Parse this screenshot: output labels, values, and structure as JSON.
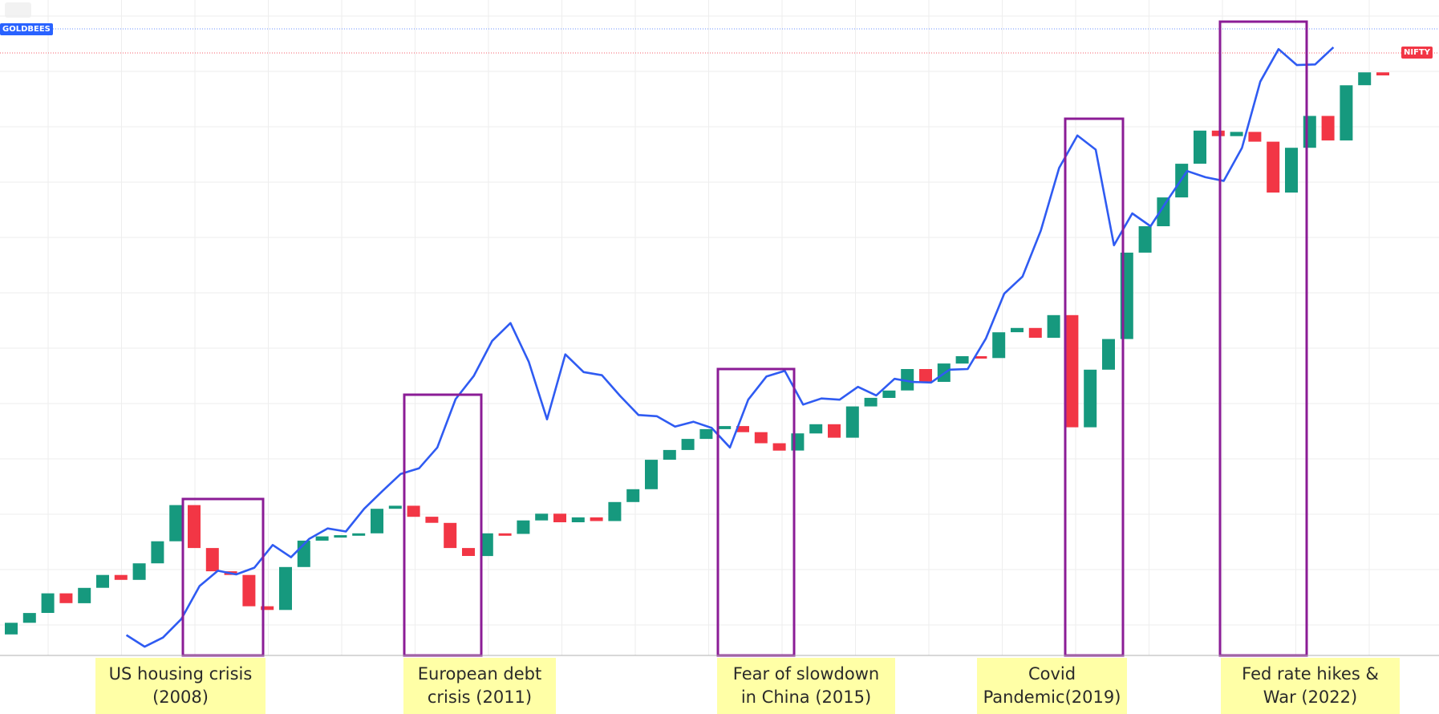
{
  "colors": {
    "up": "#16997e",
    "down": "#f23645",
    "gold_line": "#2f5bf2",
    "box": "#8b1c96",
    "note_bg": "#ffffa6",
    "grid": "#eeeeee",
    "gold_tag": "#2962ff",
    "nifty_tag": "#f23645"
  },
  "labels": {
    "gold": "GOLDBEES",
    "nifty": "NIFTY"
  },
  "annotations": [
    {
      "text": "US housing crisis\n(2008)"
    },
    {
      "text": "European debt\ncrisis (2011)"
    },
    {
      "text": "Fear of slowdown\nin China (2015)"
    },
    {
      "text": "Covid\nPandemic(2019)"
    },
    {
      "text": "Fed rate hikes &\nWar (2022)"
    }
  ],
  "chart_data": {
    "type": "candlestick",
    "ylim": [
      0,
      100
    ],
    "grid": true,
    "series": [
      {
        "name": "NIFTY",
        "kind": "candlestick",
        "values": [
          {
            "o": 1.2,
            "c": 3.1
          },
          {
            "o": 3.1,
            "c": 4.7
          },
          {
            "o": 4.7,
            "c": 7.9
          },
          {
            "o": 7.9,
            "c": 6.3
          },
          {
            "o": 6.3,
            "c": 8.8
          },
          {
            "o": 8.8,
            "c": 10.9
          },
          {
            "o": 10.9,
            "c": 10.1
          },
          {
            "o": 10.1,
            "c": 12.8
          },
          {
            "o": 12.8,
            "c": 16.4
          },
          {
            "o": 16.4,
            "c": 22.3
          },
          {
            "o": 22.3,
            "c": 15.3
          },
          {
            "o": 15.3,
            "c": 11.5
          },
          {
            "o": 11.5,
            "c": 10.9
          },
          {
            "o": 10.9,
            "c": 5.8
          },
          {
            "o": 5.8,
            "c": 5.2
          },
          {
            "o": 5.2,
            "c": 12.2
          },
          {
            "o": 12.2,
            "c": 16.5
          },
          {
            "o": 16.5,
            "c": 17.2
          },
          {
            "o": 17.2,
            "c": 17.4
          },
          {
            "o": 17.4,
            "c": 17.7
          },
          {
            "o": 17.7,
            "c": 21.7
          },
          {
            "o": 21.7,
            "c": 22.2
          },
          {
            "o": 22.2,
            "c": 20.4
          },
          {
            "o": 20.4,
            "c": 19.4
          },
          {
            "o": 19.4,
            "c": 15.3
          },
          {
            "o": 15.3,
            "c": 14.0
          },
          {
            "o": 14.0,
            "c": 17.7
          },
          {
            "o": 17.7,
            "c": 17.6
          },
          {
            "o": 17.6,
            "c": 19.8
          },
          {
            "o": 19.8,
            "c": 20.9
          },
          {
            "o": 20.9,
            "c": 19.5
          },
          {
            "o": 19.5,
            "c": 20.3
          },
          {
            "o": 20.3,
            "c": 19.7
          },
          {
            "o": 19.7,
            "c": 22.8
          },
          {
            "o": 22.8,
            "c": 24.9
          },
          {
            "o": 24.9,
            "c": 29.7
          },
          {
            "o": 29.7,
            "c": 31.3
          },
          {
            "o": 31.3,
            "c": 33.1
          },
          {
            "o": 33.1,
            "c": 34.7
          },
          {
            "o": 34.7,
            "c": 35.2
          },
          {
            "o": 35.2,
            "c": 34.2
          },
          {
            "o": 34.2,
            "c": 32.4
          },
          {
            "o": 32.4,
            "c": 31.2
          },
          {
            "o": 31.2,
            "c": 34.0
          },
          {
            "o": 34.0,
            "c": 35.5
          },
          {
            "o": 35.5,
            "c": 33.3
          },
          {
            "o": 33.3,
            "c": 38.4
          },
          {
            "o": 38.4,
            "c": 39.8
          },
          {
            "o": 39.8,
            "c": 41.0
          },
          {
            "o": 41.0,
            "c": 44.5
          },
          {
            "o": 44.5,
            "c": 42.4
          },
          {
            "o": 42.4,
            "c": 45.4
          },
          {
            "o": 45.4,
            "c": 46.6
          },
          {
            "o": 46.6,
            "c": 46.3
          },
          {
            "o": 46.3,
            "c": 50.5
          },
          {
            "o": 50.5,
            "c": 51.2
          },
          {
            "o": 51.2,
            "c": 49.6
          },
          {
            "o": 49.6,
            "c": 53.3
          },
          {
            "o": 53.3,
            "c": 35.0
          },
          {
            "o": 35.0,
            "c": 44.4
          },
          {
            "o": 44.4,
            "c": 49.4
          },
          {
            "o": 49.4,
            "c": 63.5
          },
          {
            "o": 63.5,
            "c": 67.8
          },
          {
            "o": 67.8,
            "c": 72.5
          },
          {
            "o": 72.5,
            "c": 78.0
          },
          {
            "o": 78.0,
            "c": 83.4
          },
          {
            "o": 83.4,
            "c": 82.5
          },
          {
            "o": 82.5,
            "c": 83.2
          },
          {
            "o": 83.2,
            "c": 81.6
          },
          {
            "o": 81.6,
            "c": 73.3
          },
          {
            "o": 73.3,
            "c": 80.6
          },
          {
            "o": 80.6,
            "c": 85.8
          },
          {
            "o": 85.8,
            "c": 81.8
          },
          {
            "o": 81.8,
            "c": 90.8
          },
          {
            "o": 90.8,
            "c": 92.9
          },
          {
            "o": 92.9,
            "c": 92.4
          }
        ]
      },
      {
        "name": "GOLDBEES",
        "kind": "line",
        "x_start_index": 6.3,
        "values": [
          1.1,
          -0.8,
          0.7,
          3.7,
          9.1,
          11.6,
          11.0,
          12.1,
          15.8,
          13.8,
          16.8,
          18.5,
          18.0,
          21.7,
          24.6,
          27.4,
          28.3,
          31.7,
          39.6,
          43.4,
          49.1,
          52.0,
          45.7,
          36.3,
          46.9,
          44.0,
          43.5,
          40.1,
          37.0,
          36.8,
          35.1,
          35.9,
          34.9,
          31.7,
          39.5,
          43.3,
          44.2,
          38.7,
          39.7,
          39.5,
          41.6,
          40.2,
          42.9,
          42.4,
          42.3,
          44.4,
          44.5,
          49.5,
          56.8,
          59.6,
          67.1,
          77.3,
          82.6,
          80.3,
          64.7,
          69.9,
          67.8,
          72.4,
          76.8,
          75.8,
          75.2,
          80.6,
          91.4,
          96.7,
          94.1,
          94.2,
          97.0
        ]
      }
    ]
  }
}
